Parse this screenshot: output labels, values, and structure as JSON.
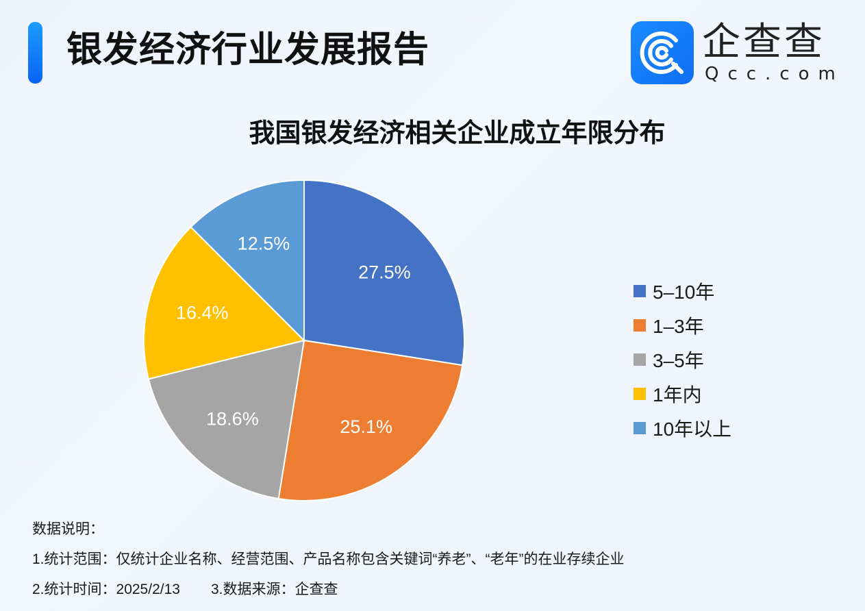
{
  "header": {
    "title": "银发经济行业发展报告",
    "accent_color": "#0a63f5"
  },
  "logo": {
    "name_cn": "企查查",
    "domain": "Qcc.com",
    "icon": "qcc-logo-icon"
  },
  "chart_data": {
    "type": "pie",
    "title": "我国银发经济相关企业成立年限分布",
    "categories": [
      "5-10年",
      "1-3年",
      "3-5年",
      "1年内",
      "10年以上"
    ],
    "values": [
      27.5,
      25.1,
      18.6,
      16.4,
      12.5
    ],
    "labels": [
      "27.5%",
      "25.1%",
      "18.6%",
      "16.4%",
      "12.5%"
    ],
    "colors": [
      "#4472c4",
      "#ed7d31",
      "#a5a5a5",
      "#ffc000",
      "#5b9bd5"
    ],
    "start_angle": "12 o'clock, clockwise",
    "legend_position": "right"
  },
  "legend": {
    "items": [
      {
        "label": "5–10年",
        "color": "#4472c4"
      },
      {
        "label": "1–3年",
        "color": "#ed7d31"
      },
      {
        "label": "3–5年",
        "color": "#a5a5a5"
      },
      {
        "label": "1年内",
        "color": "#ffc000"
      },
      {
        "label": "10年以上",
        "color": "#5b9bd5"
      }
    ]
  },
  "notes": {
    "heading": "数据说明：",
    "line1": "1.统计范围：仅统计企业名称、经营范围、产品名称包含关键词“养老”、“老年”的在业存续企业",
    "line2_time": "2.统计时间：2025/2/13",
    "line2_source": "3.数据来源：企查查"
  }
}
